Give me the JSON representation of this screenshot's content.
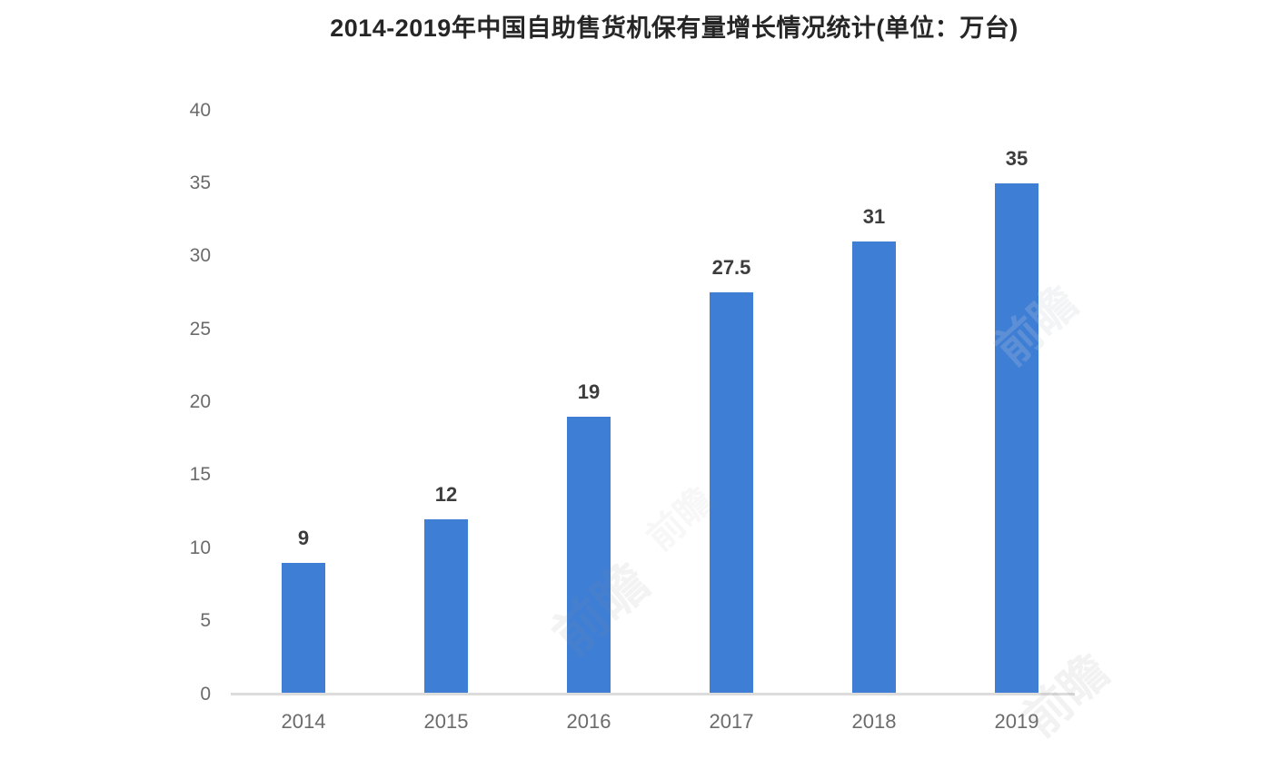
{
  "chart_data": {
    "type": "bar",
    "title": "2014-2019年中国自助售货机保有量增长情况统计(单位：万台)",
    "categories": [
      "2014",
      "2015",
      "2016",
      "2017",
      "2018",
      "2019"
    ],
    "values": [
      9,
      12,
      19,
      27.5,
      31,
      35
    ],
    "data_labels": [
      "9",
      "12",
      "19",
      "27.5",
      "31",
      "35"
    ],
    "unit": "万台",
    "xlabel": "",
    "ylabel": "",
    "ylim": [
      0,
      40
    ],
    "yticks": [
      0,
      5,
      10,
      15,
      20,
      25,
      30,
      35,
      40
    ],
    "grid": false,
    "legend_position": "none",
    "bar_color": "#3E7ED5",
    "axis_line_color": "#dcdcdc",
    "data_label_color": "#3d3d3d",
    "tick_label_color": "#6b6b6b",
    "title_color": "#262626",
    "background_color": "#ffffff"
  },
  "watermark": {
    "text": "前瞻"
  }
}
